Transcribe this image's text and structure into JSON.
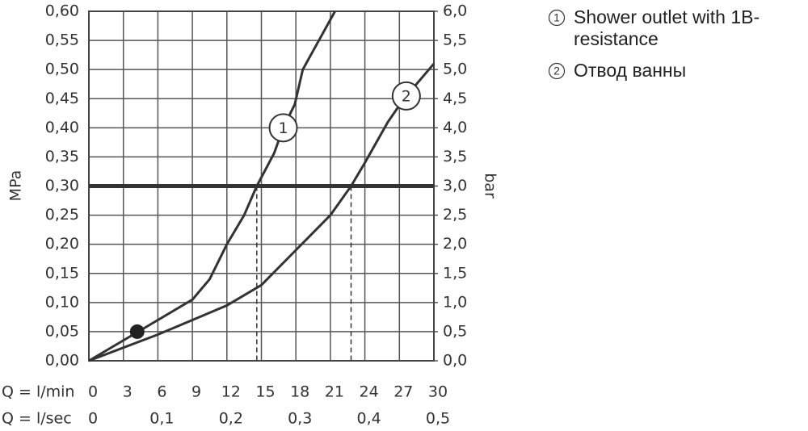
{
  "chart_data": {
    "type": "line",
    "ylabel": "MPa",
    "y2label": "bar",
    "xlabel": "Q = l/min",
    "x2label": "Q = l/sec",
    "xlim": [
      0,
      30
    ],
    "xticks": [
      0,
      3,
      6,
      9,
      12,
      15,
      18,
      21,
      24,
      27,
      30
    ],
    "x2lim": [
      0,
      0.5
    ],
    "x2ticks": [
      0,
      {
        "value": 0.1,
        "label": "0,1"
      },
      {
        "value": 0.2,
        "label": "0,2"
      },
      {
        "value": 0.3,
        "label": "0,3"
      },
      {
        "value": 0.4,
        "label": "0,4"
      },
      {
        "value": 0.5,
        "label": "0,5"
      }
    ],
    "ylim": [
      0,
      0.6
    ],
    "yticks": [
      {
        "value": 0,
        "label": "0,00"
      },
      {
        "value": 0.05,
        "label": "0,05"
      },
      {
        "value": 0.1,
        "label": "0,10"
      },
      {
        "value": 0.15,
        "label": "0,15"
      },
      {
        "value": 0.2,
        "label": "0,20"
      },
      {
        "value": 0.25,
        "label": "0,25"
      },
      {
        "value": 0.3,
        "label": "0,30"
      },
      {
        "value": 0.35,
        "label": "0,35"
      },
      {
        "value": 0.4,
        "label": "0,40"
      },
      {
        "value": 0.45,
        "label": "0,45"
      },
      {
        "value": 0.5,
        "label": "0,50"
      },
      {
        "value": 0.55,
        "label": "0,55"
      },
      {
        "value": 0.6,
        "label": "0,60"
      }
    ],
    "y2lim": [
      0,
      6
    ],
    "y2ticks": [
      {
        "value": 0,
        "label": "0,0"
      },
      {
        "value": 0.5,
        "label": "0,5"
      },
      {
        "value": 1,
        "label": "1,0"
      },
      {
        "value": 1.5,
        "label": "1,5"
      },
      {
        "value": 2,
        "label": "2,0"
      },
      {
        "value": 2.5,
        "label": "2,5"
      },
      {
        "value": 3,
        "label": "3,0"
      },
      {
        "value": 3.5,
        "label": "3,5"
      },
      {
        "value": 4,
        "label": "4,0"
      },
      {
        "value": 4.5,
        "label": "4,5"
      },
      {
        "value": 5,
        "label": "5,0"
      },
      {
        "value": 5.5,
        "label": "5,5"
      },
      {
        "value": 6,
        "label": "6,0"
      }
    ],
    "grid": true,
    "reference_line": 0.3,
    "drop_lines_x": [
      14.6,
      22.8
    ],
    "point": {
      "x": 4.2,
      "y": 0.05
    },
    "series": [
      {
        "name": "Shower outlet with 1B-resistance",
        "marker_label": "1",
        "color": "#333333",
        "label_at": 16.9,
        "x": [
          0,
          3,
          6,
          9,
          10.5,
          12,
          13.5,
          14.6,
          16.1,
          16.9,
          17.9,
          18.6,
          21.4
        ],
        "values": [
          0,
          0.035,
          0.07,
          0.105,
          0.14,
          0.2,
          0.25,
          0.3,
          0.356,
          0.4,
          0.44,
          0.5,
          0.6
        ]
      },
      {
        "name": "Отвод ванны",
        "marker_label": "2",
        "color": "#333333",
        "label_at": 27.6,
        "x": [
          0,
          6,
          9,
          12,
          15,
          18,
          21,
          22.8,
          24,
          26,
          27.4,
          30
        ],
        "values": [
          0,
          0.045,
          0.07,
          0.095,
          0.13,
          0.19,
          0.25,
          0.3,
          0.34,
          0.41,
          0.45,
          0.51
        ]
      }
    ]
  }
}
